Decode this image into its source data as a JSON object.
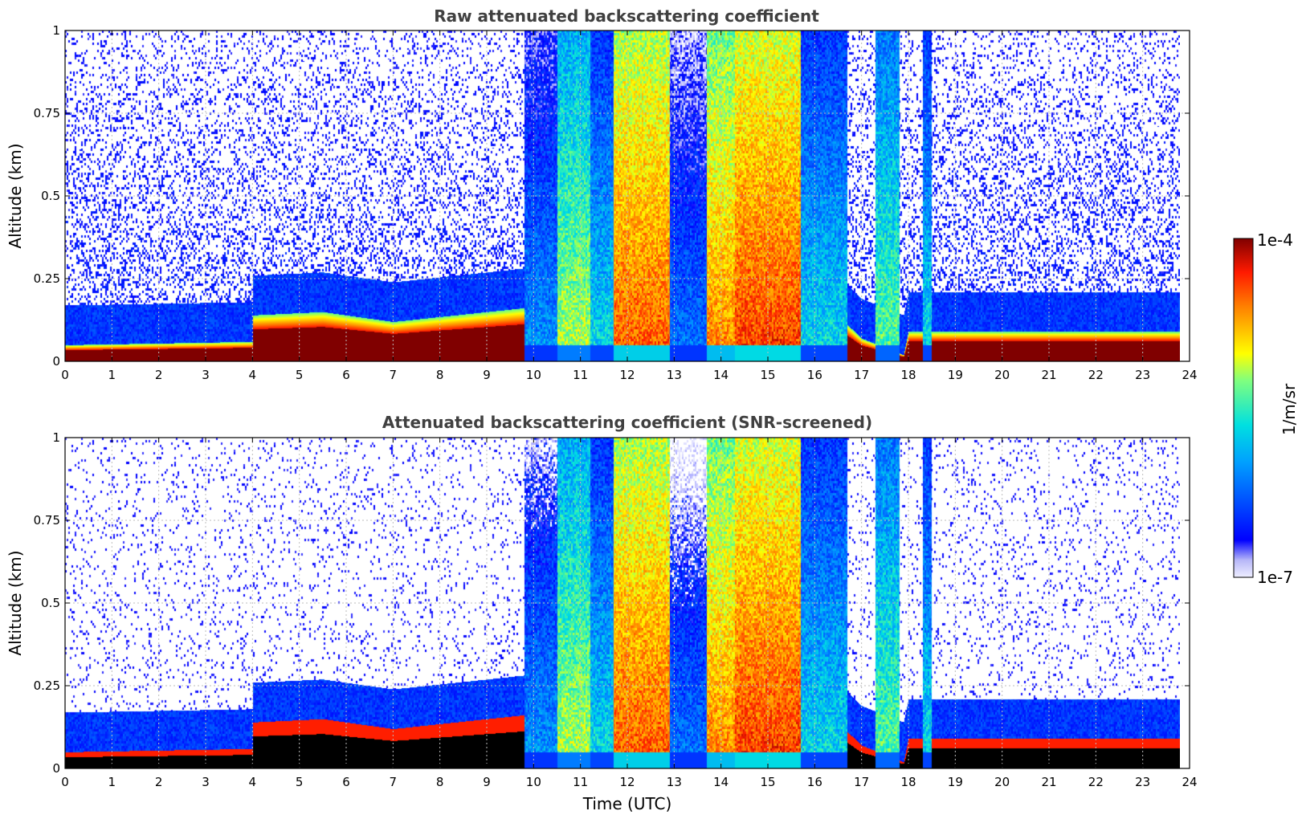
{
  "chart_data": [
    {
      "type": "heatmap",
      "title": "Raw attenuated backscattering coefficient",
      "xlabel": "",
      "ylabel": "Altitude (km)",
      "xlim": [
        0,
        24
      ],
      "ylim": [
        0,
        1
      ],
      "xticks": [
        "0",
        "1",
        "2",
        "3",
        "4",
        "5",
        "6",
        "7",
        "8",
        "9",
        "10",
        "11",
        "12",
        "13",
        "14",
        "15",
        "16",
        "17",
        "18",
        "19",
        "20",
        "21",
        "22",
        "23",
        "24"
      ],
      "yticks": [
        "0",
        "0.25",
        "0.5",
        "0.75",
        "1"
      ],
      "grid": true,
      "data_coverage_hours": [
        0,
        23.8
      ],
      "colorscale": "jet",
      "color_log_range": [
        -7,
        -4
      ],
      "cloud_bands": [
        {
          "start": 9.8,
          "end": 10.5,
          "intensity": 0.35
        },
        {
          "start": 10.5,
          "end": 11.2,
          "intensity": 0.62
        },
        {
          "start": 11.2,
          "end": 11.7,
          "intensity": 0.45
        },
        {
          "start": 11.7,
          "end": 12.9,
          "intensity": 0.85
        },
        {
          "start": 12.9,
          "end": 13.7,
          "intensity": 0.3
        },
        {
          "start": 13.7,
          "end": 14.3,
          "intensity": 0.8
        },
        {
          "start": 14.3,
          "end": 15.7,
          "intensity": 0.88
        },
        {
          "start": 15.7,
          "end": 16.7,
          "intensity": 0.45
        },
        {
          "start": 17.3,
          "end": 17.8,
          "intensity": 0.55
        },
        {
          "start": 18.3,
          "end": 18.5,
          "intensity": 0.45
        }
      ],
      "boundary_layer_km": [
        {
          "t": 0,
          "h": 0.05
        },
        {
          "t": 4,
          "h": 0.06
        },
        {
          "t": 4.0,
          "h": 0.14
        },
        {
          "t": 5.5,
          "h": 0.15
        },
        {
          "t": 7.0,
          "h": 0.12
        },
        {
          "t": 15.7,
          "h": 0.25
        },
        {
          "t": 17.0,
          "h": 0.07
        },
        {
          "t": 17.9,
          "h": 0.02
        },
        {
          "t": 18.0,
          "h": 0.09
        },
        {
          "t": 23.8,
          "h": 0.09
        }
      ]
    },
    {
      "type": "heatmap",
      "title": "Attenuated backscattering coefficient (SNR-screened)",
      "xlabel": "Time (UTC)",
      "ylabel": "Altitude (km)",
      "xlim": [
        0,
        24
      ],
      "ylim": [
        0,
        1
      ],
      "xticks": [
        "0",
        "1",
        "2",
        "3",
        "4",
        "5",
        "6",
        "7",
        "8",
        "9",
        "10",
        "11",
        "12",
        "13",
        "14",
        "15",
        "16",
        "17",
        "18",
        "19",
        "20",
        "21",
        "22",
        "23",
        "24"
      ],
      "yticks": [
        "0",
        "0.25",
        "0.5",
        "0.75",
        "1"
      ],
      "grid": true,
      "data_coverage_hours": [
        0,
        23.8
      ],
      "colorscale": "jet",
      "color_log_range": [
        -7,
        -4
      ]
    }
  ],
  "colorbar": {
    "label": "1/m/sr",
    "max_label": "1e-4",
    "min_label": "1e-7"
  }
}
